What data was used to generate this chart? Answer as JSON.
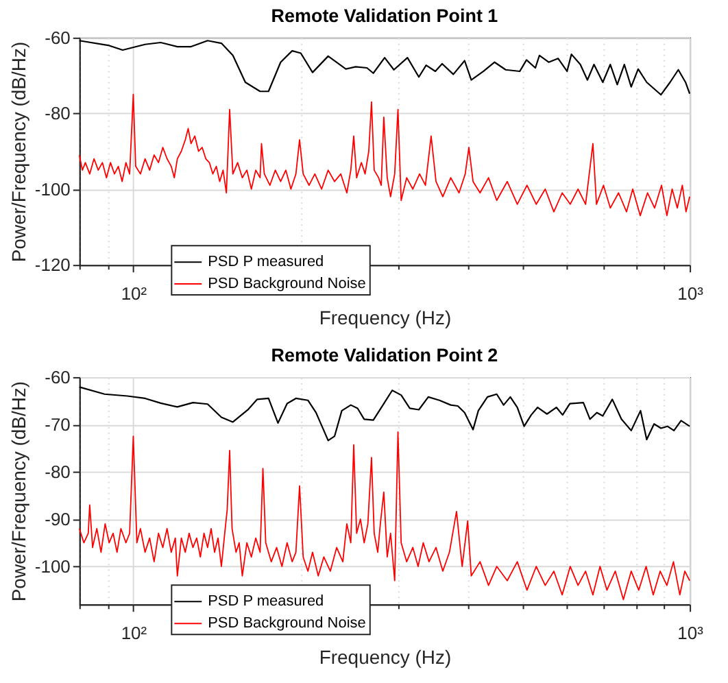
{
  "chart_data": [
    {
      "type": "line",
      "title": "Remote Validation Point 1",
      "xlabel": "Frequency (Hz)",
      "ylabel": "Power/Frequency (dB/Hz)",
      "log": "x",
      "grid": true,
      "legend": "bottom left",
      "line_style": "solid",
      "marker": "none",
      "xlim": [
        80,
        1000
      ],
      "ylim": [
        -120,
        -60
      ],
      "xticks": [
        {
          "value": 80,
          "label": null
        },
        {
          "value": 90,
          "label": null
        },
        {
          "value": 100,
          "label": "10²"
        },
        {
          "value": 200,
          "label": null
        },
        {
          "value": 300,
          "label": null
        },
        {
          "value": 400,
          "label": null
        },
        {
          "value": 500,
          "label": null
        },
        {
          "value": 600,
          "label": null
        },
        {
          "value": 700,
          "label": null
        },
        {
          "value": 800,
          "label": null
        },
        {
          "value": 900,
          "label": null
        },
        {
          "value": 1000,
          "label": "10³"
        }
      ],
      "yticks": [
        -120,
        -100,
        -80,
        -60
      ],
      "series": [
        {
          "name": "PSD P measured",
          "color": "#000000",
          "x": [
            80,
            90.5,
            95.7,
            105,
            112,
            120,
            127,
            136,
            144,
            151,
            159,
            169,
            175,
            184,
            193,
            200,
            210,
            224,
            241,
            251,
            263,
            270,
            283,
            294,
            311,
            326,
            336,
            349,
            359,
            376,
            394,
            405,
            426,
            446,
            467,
            495,
            509,
            528,
            537,
            558,
            580,
            602,
            613,
            636,
            655,
            673,
            698,
            720,
            741,
            763,
            785,
            808,
            837,
            888,
            922,
            954,
            983,
            1000
          ],
          "values": [
            -60.8,
            -62.1,
            -63.3,
            -61.8,
            -61.3,
            -62.4,
            -62.4,
            -60.8,
            -61.5,
            -64.7,
            -71.8,
            -74.2,
            -74.2,
            -66.5,
            -63.5,
            -64.1,
            -69.2,
            -64.9,
            -68.3,
            -67.7,
            -68.0,
            -69.4,
            -65.3,
            -68.5,
            -65.3,
            -70.4,
            -67.3,
            -68.9,
            -66.9,
            -69.7,
            -66.1,
            -71.2,
            -68.9,
            -66.5,
            -68.5,
            -68.9,
            -65.9,
            -68.0,
            -64.7,
            -66.5,
            -65.5,
            -68.9,
            -64.4,
            -67.1,
            -71.2,
            -67.1,
            -71.8,
            -67.1,
            -72.4,
            -67.1,
            -73.0,
            -68.3,
            -71.8,
            -75.1,
            -71.8,
            -68.5,
            -71.8,
            -74.8
          ]
        },
        {
          "name": "PSD Background Noise",
          "color": "#ff0000",
          "x": [
            80,
            81,
            82,
            83.5,
            85,
            86.5,
            88,
            89.5,
            91,
            92.5,
            94,
            95.5,
            97,
            98.5,
            100,
            101,
            103,
            105,
            107,
            109,
            111,
            113,
            115,
            117,
            118.5,
            120,
            122,
            124,
            125.5,
            127,
            129,
            131,
            133,
            135,
            137,
            139,
            141,
            143,
            145,
            147,
            149,
            151,
            154,
            157,
            160,
            163,
            166,
            169,
            170,
            172,
            176,
            180,
            184,
            188,
            192,
            196,
            199,
            202,
            207,
            212,
            218,
            224,
            230,
            236,
            242,
            246,
            249,
            252,
            257,
            261,
            265,
            268,
            271,
            276,
            279,
            282,
            286,
            290,
            295,
            299,
            303,
            310,
            318,
            327,
            335,
            343,
            350,
            360,
            372,
            385,
            395,
            401,
            408,
            420,
            435,
            450,
            470,
            490,
            510,
            530,
            550,
            570,
            590,
            610,
            630,
            650,
            670,
            680,
            700,
            720,
            745,
            770,
            790,
            815,
            840,
            865,
            890,
            910,
            930,
            950,
            970,
            985,
            1000
          ],
          "values": [
            -91,
            -95,
            -93,
            -96,
            -92,
            -95,
            -93,
            -97,
            -93,
            -96,
            -94,
            -98,
            -93,
            -96,
            -75,
            -94,
            -96,
            -92,
            -95,
            -91,
            -93,
            -89,
            -92,
            -94,
            -97,
            -92,
            -90,
            -87,
            -84,
            -88,
            -86,
            -90,
            -89,
            -92,
            -93,
            -96,
            -94,
            -98,
            -95,
            -101,
            -79,
            -96,
            -93,
            -97,
            -95,
            -100,
            -95,
            -97,
            -88,
            -96,
            -99,
            -95,
            -98,
            -95,
            -100,
            -96,
            -87,
            -96,
            -99,
            -96,
            -100,
            -95,
            -98,
            -96,
            -101,
            -95,
            -86,
            -97,
            -93,
            -96,
            -90,
            -77,
            -95,
            -97,
            -99,
            -81,
            -97,
            -102,
            -96,
            -79,
            -103,
            -97,
            -100,
            -96,
            -99,
            -86,
            -98,
            -102,
            -97,
            -101,
            -96,
            -89,
            -98,
            -101,
            -97,
            -103,
            -98,
            -104,
            -99,
            -104,
            -100,
            -106,
            -101,
            -104,
            -100,
            -104,
            -88,
            -104,
            -99,
            -105,
            -101,
            -106,
            -100,
            -107,
            -101,
            -105,
            -99,
            -107,
            -100,
            -105,
            -99,
            -106,
            -102
          ]
        }
      ]
    },
    {
      "type": "line",
      "title": "Remote Validation Point 2",
      "xlabel": "Frequency (Hz)",
      "ylabel": "Power/Frequency (dB/Hz)",
      "log": "x",
      "grid": true,
      "legend": "bottom left",
      "line_style": "solid",
      "marker": "none",
      "xlim": [
        80,
        1000
      ],
      "ylim": [
        -108,
        -60
      ],
      "xticks": [
        {
          "value": 80,
          "label": null
        },
        {
          "value": 90,
          "label": null
        },
        {
          "value": 100,
          "label": "10²"
        },
        {
          "value": 200,
          "label": null
        },
        {
          "value": 300,
          "label": null
        },
        {
          "value": 400,
          "label": null
        },
        {
          "value": 500,
          "label": null
        },
        {
          "value": 600,
          "label": null
        },
        {
          "value": 700,
          "label": null
        },
        {
          "value": 800,
          "label": null
        },
        {
          "value": 900,
          "label": null
        },
        {
          "value": 1000,
          "label": "10³"
        }
      ],
      "yticks": [
        -100,
        -90,
        -80,
        -70,
        -60
      ],
      "series": [
        {
          "name": "PSD P measured",
          "color": "#000000",
          "x": [
            80,
            88.8,
            97.6,
            105,
            112,
            120,
            128,
            136,
            144,
            151,
            161,
            167,
            175,
            182,
            189,
            196,
            206,
            213,
            224,
            230,
            237,
            246,
            253,
            260,
            270,
            281,
            292,
            303,
            314,
            326,
            339,
            355,
            372,
            383,
            394,
            408,
            417,
            433,
            450,
            463,
            476,
            490,
            504,
            519,
            533,
            554,
            576,
            591,
            609,
            644,
            662,
            681,
            698,
            726,
            754,
            785,
            816,
            837,
            863,
            888,
            912,
            937,
            965,
            1000
          ],
          "values": [
            -62.1,
            -63.6,
            -64.0,
            -64.5,
            -65.5,
            -66.3,
            -65.4,
            -65.7,
            -68.5,
            -69.5,
            -66.8,
            -64.7,
            -64.5,
            -69.7,
            -65.6,
            -64.5,
            -64.9,
            -67.5,
            -73.4,
            -72.5,
            -67.1,
            -65.9,
            -66.6,
            -68.9,
            -69.1,
            -65.9,
            -62.8,
            -63.8,
            -66.6,
            -66.9,
            -64.2,
            -64.9,
            -65.9,
            -66.1,
            -67.5,
            -71.1,
            -67.1,
            -64.2,
            -63.6,
            -65.9,
            -64.2,
            -66.4,
            -70.4,
            -68.0,
            -66.4,
            -67.8,
            -66.4,
            -68.0,
            -65.6,
            -65.4,
            -68.9,
            -67.5,
            -68.2,
            -64.7,
            -68.9,
            -71.3,
            -67.1,
            -73.2,
            -69.9,
            -70.8,
            -70.4,
            -71.3,
            -69.2,
            -70.4
          ]
        },
        {
          "name": "PSD Background Noise",
          "color": "#ff0000",
          "x": [
            80,
            81.5,
            83,
            83.5,
            84.5,
            86,
            87.5,
            89,
            90.5,
            92,
            93.5,
            95,
            97,
            98.5,
            100,
            101.5,
            103,
            105,
            107,
            109,
            111,
            113,
            115,
            117,
            119,
            120,
            122,
            124,
            126,
            128,
            130,
            132,
            134,
            136,
            138,
            140,
            142,
            144,
            146,
            147.5,
            149,
            150.5,
            153,
            155,
            157,
            160,
            163,
            166,
            169,
            171,
            173,
            177,
            181,
            185,
            189,
            193,
            196,
            199,
            202,
            206,
            210,
            215,
            220,
            226,
            232,
            238,
            242,
            246,
            249,
            252,
            256,
            260,
            264,
            268,
            271,
            275,
            278,
            282,
            286,
            290,
            295,
            299,
            303,
            310,
            318,
            325,
            332,
            340,
            350,
            360,
            370,
            381,
            390,
            399,
            405,
            420,
            435,
            450,
            470,
            490,
            510,
            530,
            550,
            570,
            590,
            610,
            630,
            650,
            670,
            690,
            710,
            735,
            760,
            785,
            810,
            835,
            860,
            885,
            910,
            935,
            960,
            980,
            1000
          ],
          "values": [
            -92,
            -95,
            -93,
            -87,
            -96,
            -92,
            -97,
            -91,
            -95,
            -93,
            -97,
            -92,
            -95,
            -93,
            -72.5,
            -95,
            -92,
            -97,
            -94,
            -99,
            -93,
            -96,
            -92,
            -97,
            -94,
            -102,
            -94,
            -97,
            -93,
            -96,
            -94,
            -98,
            -93,
            -96,
            -92,
            -97,
            -94,
            -100,
            -93,
            -88,
            -75.5,
            -92,
            -97,
            -95,
            -102,
            -95,
            -98,
            -94,
            -97,
            -79.3,
            -95,
            -99,
            -96,
            -100,
            -95,
            -99,
            -97,
            -83,
            -98,
            -101,
            -97,
            -102,
            -98,
            -101,
            -96,
            -99,
            -91,
            -95,
            -74.3,
            -93,
            -90,
            -95,
            -91,
            -77,
            -93,
            -97,
            -91,
            -84.3,
            -98,
            -93,
            -103,
            -71.6,
            -95,
            -99,
            -96,
            -100,
            -95,
            -99,
            -96,
            -101,
            -97,
            -88.4,
            -100,
            -90.4,
            -102,
            -99,
            -104,
            -100,
            -103,
            -99,
            -105,
            -100,
            -104,
            -101,
            -106,
            -100,
            -104,
            -101,
            -106,
            -100,
            -105,
            -101,
            -107,
            -101,
            -105,
            -100,
            -106,
            -101,
            -104,
            -99,
            -106,
            -101,
            -103
          ]
        }
      ]
    }
  ]
}
